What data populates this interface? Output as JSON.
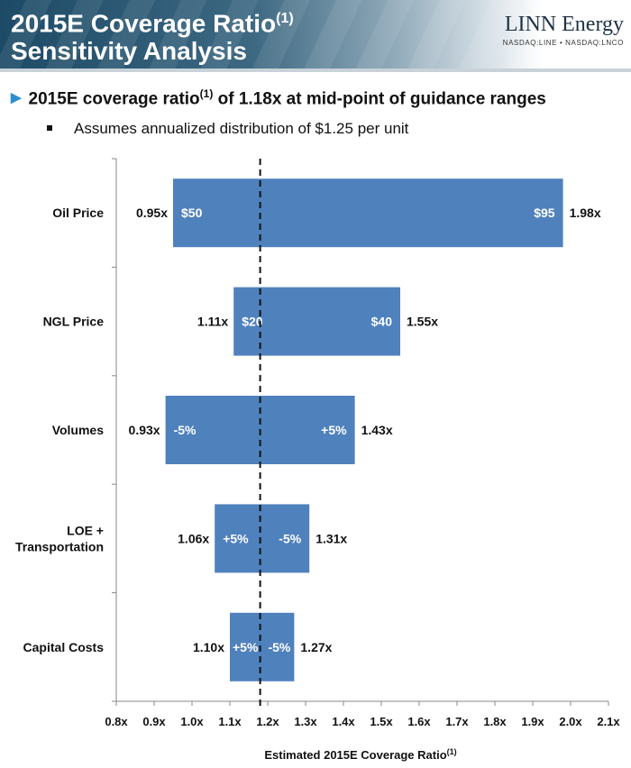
{
  "header": {
    "title_line1": "2015E Coverage Ratio",
    "title_sup": "(1)",
    "title_line2": "Sensitivity Analysis",
    "logo_name": "LINN Energy",
    "logo_tickers": "NASDAQ:LINE • NASDAQ:LNCO"
  },
  "bullets": {
    "main_pre": "2015E coverage ratio",
    "main_sup": "(1)",
    "main_post": " of 1.18x at mid-point of guidance ranges",
    "sub": "Assumes annualized distribution of $1.25 per unit"
  },
  "colors": {
    "bar": "#4f81bd",
    "header": "#1d4a66",
    "accent": "#2f8fce"
  },
  "chart_data": {
    "type": "bar",
    "orientation": "horizontal-tornado",
    "baseline": 1.18,
    "xlabel": "Estimated 2015E Coverage Ratio",
    "xlabel_sup": "(1)",
    "xlim": [
      0.8,
      2.1
    ],
    "xticks": [
      "0.8x",
      "0.9x",
      "1.0x",
      "1.1x",
      "1.2x",
      "1.3x",
      "1.4x",
      "1.5x",
      "1.6x",
      "1.7x",
      "1.8x",
      "1.9x",
      "2.0x",
      "2.1x"
    ],
    "categories": [
      {
        "label_lines": [
          "Oil Price"
        ],
        "low": 0.95,
        "high": 1.98,
        "low_label": "0.95x",
        "high_label": "1.98x",
        "low_case": "$50",
        "high_case": "$95"
      },
      {
        "label_lines": [
          "NGL Price"
        ],
        "low": 1.11,
        "high": 1.55,
        "low_label": "1.11x",
        "high_label": "1.55x",
        "low_case": "$20",
        "high_case": "$40"
      },
      {
        "label_lines": [
          "Volumes"
        ],
        "low": 0.93,
        "high": 1.43,
        "low_label": "0.93x",
        "high_label": "1.43x",
        "low_case": "-5%",
        "high_case": "+5%"
      },
      {
        "label_lines": [
          "LOE +",
          "Transportation"
        ],
        "low": 1.06,
        "high": 1.31,
        "low_label": "1.06x",
        "high_label": "1.31x",
        "low_case": "+5%",
        "high_case": "-5%"
      },
      {
        "label_lines": [
          "Capital Costs"
        ],
        "low": 1.1,
        "high": 1.27,
        "low_label": "1.10x",
        "high_label": "1.27x",
        "low_case": "+5%",
        "high_case": "-5%"
      }
    ]
  }
}
